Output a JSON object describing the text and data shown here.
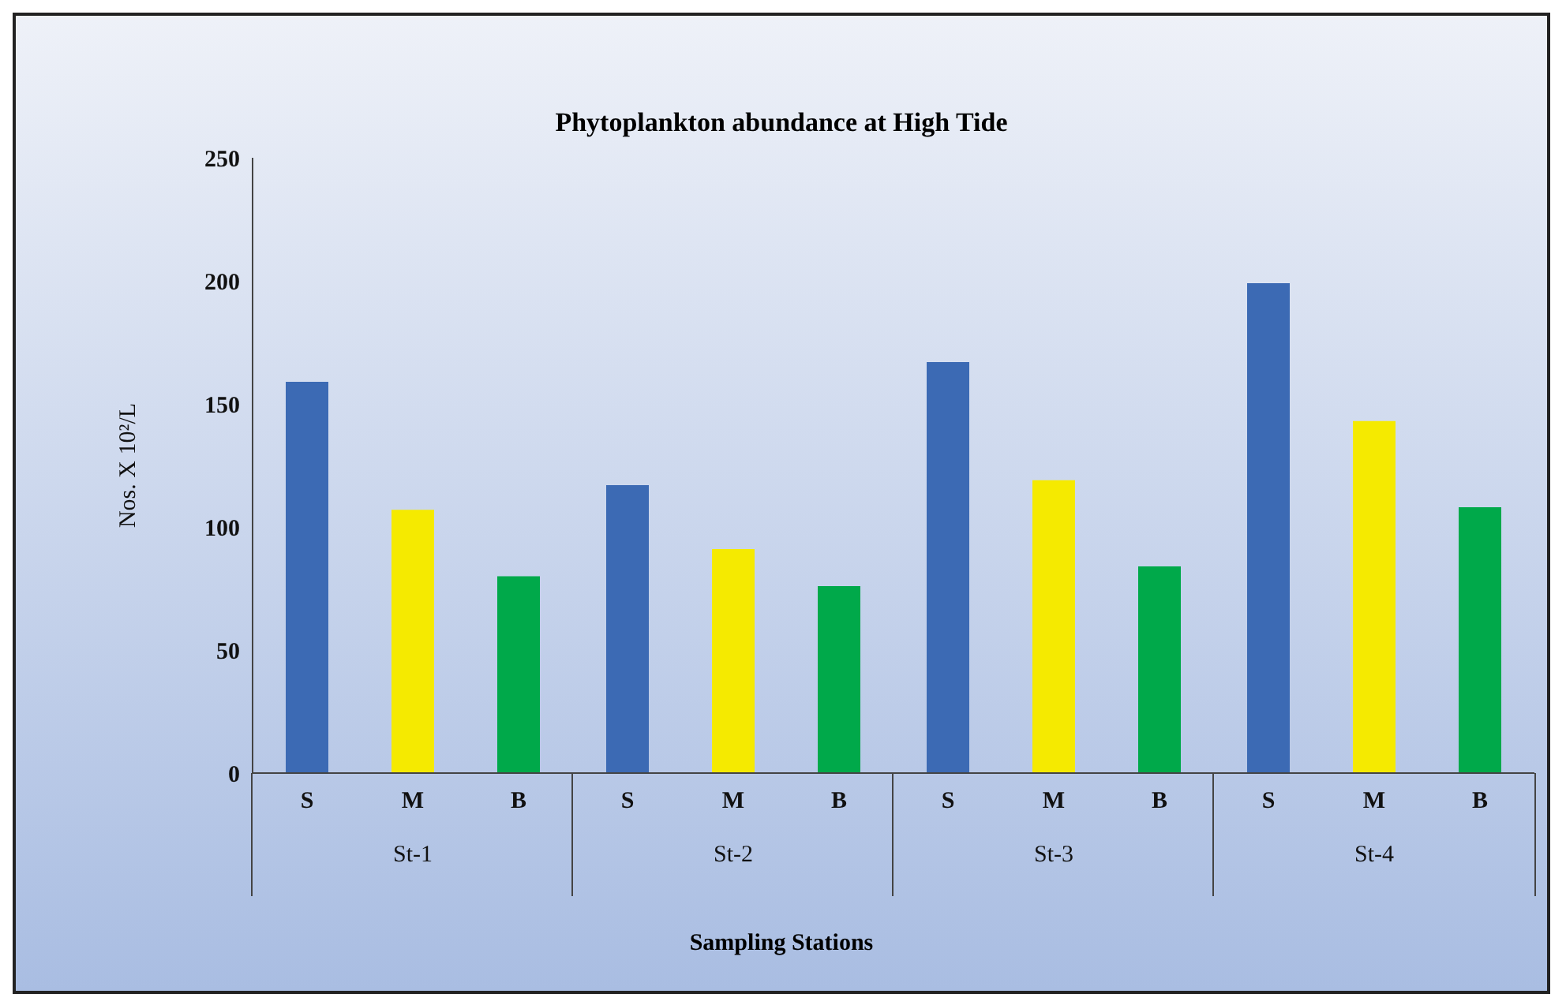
{
  "chart_data": {
    "type": "bar",
    "title": "Phytoplankton abundance at High Tide",
    "xlabel": "Sampling Stations",
    "ylabel": "Nos. X 10²/L",
    "categories": [
      "St-1",
      "St-2",
      "St-3",
      "St-4"
    ],
    "series": [
      {
        "name": "S",
        "color": "#3c6ab4",
        "values": [
          159,
          117,
          167,
          199
        ]
      },
      {
        "name": "M",
        "color": "#f5ea00",
        "values": [
          107,
          91,
          119,
          143
        ]
      },
      {
        "name": "B",
        "color": "#00a94a",
        "values": [
          80,
          76,
          84,
          108
        ]
      }
    ],
    "ylim": [
      0,
      250
    ],
    "yticks": [
      0,
      50,
      100,
      150,
      200,
      250
    ],
    "grid": false,
    "legend": false
  }
}
